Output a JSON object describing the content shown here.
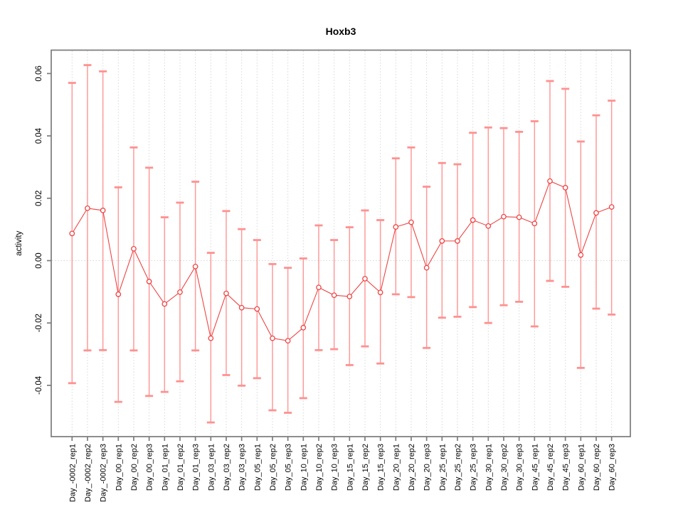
{
  "chart_data": {
    "type": "line",
    "title": "Hoxb3",
    "xlabel": "",
    "ylabel": "activity",
    "marker": "open-circle",
    "legend_position": "none",
    "grid": {
      "vertical": "dotted-per-category",
      "horizontal": "dotted-zero-line-only"
    },
    "ylim": [
      -0.0564,
      0.0676
    ],
    "ytick_labels": [
      "-0.04",
      "-0.02",
      "0.00",
      "0.02",
      "0.04",
      "0.06"
    ],
    "ytick_values": [
      -0.04,
      -0.02,
      0.0,
      0.02,
      0.04,
      0.06
    ],
    "categories": [
      "Day_-0002_rep1",
      "Day_-0002_rep2",
      "Day_-0002_rep3",
      "Day_00_rep1",
      "Day_00_rep2",
      "Day_00_rep3",
      "Day_01_rep1",
      "Day_01_rep2",
      "Day_01_rep3",
      "Day_03_rep1",
      "Day_03_rep2",
      "Day_03_rep3",
      "Day_05_rep1",
      "Day_05_rep2",
      "Day_05_rep3",
      "Day_10_rep1",
      "Day_10_rep2",
      "Day_10_rep3",
      "Day_15_rep1",
      "Day_15_rep2",
      "Day_15_rep3",
      "Day_20_rep1",
      "Day_20_rep2",
      "Day_20_rep3",
      "Day_25_rep1",
      "Day_25_rep2",
      "Day_25_rep3",
      "Day_30_rep1",
      "Day_30_rep2",
      "Day_30_rep3",
      "Day_45_rep1",
      "Day_45_rep2",
      "Day_45_rep3",
      "Day_60_rep1",
      "Day_60_rep2",
      "Day_60_rep3"
    ],
    "series": [
      {
        "name": "activity",
        "values": [
          0.0087,
          0.0168,
          0.0161,
          -0.0108,
          0.0038,
          -0.0067,
          -0.0139,
          -0.0101,
          -0.0019,
          -0.0249,
          -0.0105,
          -0.0151,
          -0.0155,
          -0.0249,
          -0.0257,
          -0.0215,
          -0.0086,
          -0.0111,
          -0.0115,
          -0.0058,
          -0.0102,
          0.0108,
          0.0123,
          -0.0023,
          0.0063,
          0.0063,
          0.013,
          0.0111,
          0.0141,
          0.0139,
          0.0119,
          0.0255,
          0.0234,
          0.0018,
          0.0153,
          0.0172
        ],
        "error_low": [
          -0.0393,
          -0.0288,
          -0.0287,
          -0.0453,
          -0.0288,
          -0.0434,
          -0.0421,
          -0.0387,
          -0.0288,
          -0.0519,
          -0.0367,
          -0.0401,
          -0.0377,
          -0.048,
          -0.0488,
          -0.0441,
          -0.0287,
          -0.0284,
          -0.0335,
          -0.0275,
          -0.033,
          -0.0108,
          -0.0117,
          -0.028,
          -0.0183,
          -0.018,
          -0.0149,
          -0.02,
          -0.0143,
          -0.0132,
          -0.0211,
          -0.0065,
          -0.0084,
          -0.0344,
          -0.0154,
          -0.0173
        ],
        "error_high": [
          0.057,
          0.0627,
          0.0607,
          0.0235,
          0.0363,
          0.0298,
          0.0139,
          0.0186,
          0.0253,
          0.0025,
          0.0159,
          0.0101,
          0.0066,
          -0.0011,
          -0.0023,
          0.0007,
          0.0113,
          0.0066,
          0.0107,
          0.0161,
          0.013,
          0.0328,
          0.0363,
          0.0237,
          0.0313,
          0.0309,
          0.041,
          0.0427,
          0.0425,
          0.0413,
          0.0447,
          0.0576,
          0.0551,
          0.0382,
          0.0466,
          0.0513
        ]
      }
    ],
    "colors": {
      "series_line": "#ee4444",
      "marker_stroke": "#ee4444",
      "marker_fill": "#ffffff",
      "error_bar": "#ff9191",
      "grid_line": "#d6d6d6",
      "axis_box": "#7a7a7a",
      "tick_text": "#000000"
    }
  }
}
